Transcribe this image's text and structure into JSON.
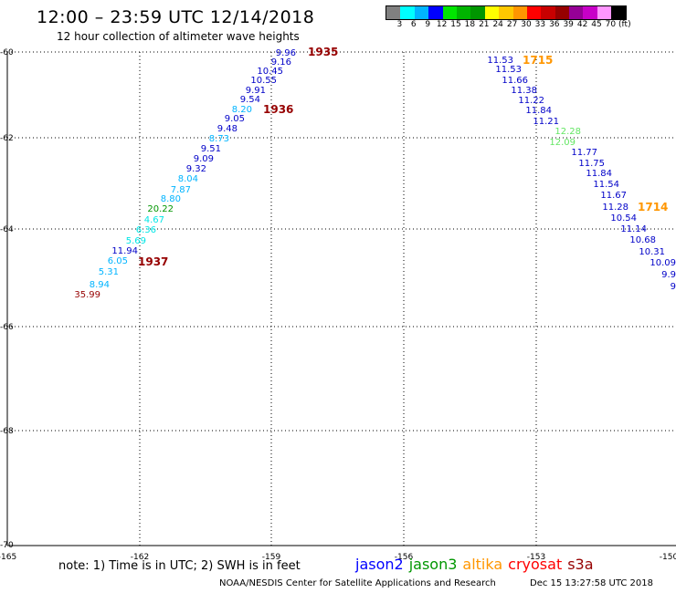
{
  "header": {
    "title": "12:00 – 23:59 UTC 12/14/2018",
    "subtitle": "12 hour collection of altimeter wave heights"
  },
  "colorbar": {
    "colors": [
      "#808080",
      "#00ffff",
      "#00b4ff",
      "#0000ff",
      "#00e600",
      "#00b400",
      "#009600",
      "#ffff00",
      "#ffc800",
      "#ff9600",
      "#ff0000",
      "#c80000",
      "#960000",
      "#960096",
      "#c800c8",
      "#ff96ff",
      "#000000"
    ],
    "ticks": [
      "3",
      "6",
      "9",
      "12",
      "15",
      "18",
      "21",
      "24",
      "27",
      "30",
      "33",
      "36",
      "39",
      "42",
      "45",
      "70",
      "(ft)"
    ]
  },
  "axes": {
    "lon_ticks": [
      "-165",
      "-162",
      "-159",
      "-156",
      "-153",
      "-150"
    ],
    "lat_ticks": [
      "-60",
      "-62",
      "-64",
      "-66",
      "-68",
      "-70"
    ]
  },
  "tracks": [
    {
      "points": [
        {
          "v": "9.96",
          "c": "#0000c8"
        },
        {
          "v": "9.16",
          "c": "#0000c8"
        },
        {
          "v": "10.45",
          "c": "#0000c8"
        },
        {
          "v": "10.55",
          "c": "#0000c8"
        },
        {
          "v": "9.91",
          "c": "#0000c8"
        },
        {
          "v": "9.54",
          "c": "#0000c8"
        },
        {
          "v": "8.20",
          "c": "#00b4ff"
        },
        {
          "v": "9.05",
          "c": "#0000c8"
        },
        {
          "v": "9.48",
          "c": "#0000c8"
        },
        {
          "v": "8.73",
          "c": "#00b4ff"
        },
        {
          "v": "9.51",
          "c": "#0000c8"
        },
        {
          "v": "9.09",
          "c": "#0000c8"
        },
        {
          "v": "9.32",
          "c": "#0000c8"
        },
        {
          "v": "8.04",
          "c": "#00b4ff"
        },
        {
          "v": "7.87",
          "c": "#00b4ff"
        },
        {
          "v": "8.80",
          "c": "#00b4ff"
        },
        {
          "v": "20.22",
          "c": "#009600"
        },
        {
          "v": "4.67",
          "c": "#00e6e6"
        },
        {
          "v": "6.36",
          "c": "#00e6e6"
        },
        {
          "v": "5.69",
          "c": "#00e6e6"
        },
        {
          "v": "11.94",
          "c": "#0000c8"
        },
        {
          "v": "6.05",
          "c": "#00b4ff"
        },
        {
          "v": "5.31",
          "c": "#00b4ff"
        },
        {
          "v": "8.94",
          "c": "#00b4ff"
        },
        {
          "v": "35.99",
          "c": "#960000"
        }
      ]
    },
    {
      "points": [
        {
          "v": "11.53",
          "c": "#0000c8"
        },
        {
          "v": "11.53",
          "c": "#0000c8"
        },
        {
          "v": "11.66",
          "c": "#0000c8"
        },
        {
          "v": "11.38",
          "c": "#0000c8"
        },
        {
          "v": "11.22",
          "c": "#0000c8"
        },
        {
          "v": "11.84",
          "c": "#0000c8"
        },
        {
          "v": "11.21",
          "c": "#0000c8"
        },
        {
          "v": "12.28",
          "c": "#64e664"
        },
        {
          "v": "12.09",
          "c": "#64e664"
        },
        {
          "v": "11.77",
          "c": "#0000c8"
        },
        {
          "v": "11.75",
          "c": "#0000c8"
        },
        {
          "v": "11.84",
          "c": "#0000c8"
        },
        {
          "v": "11.54",
          "c": "#0000c8"
        },
        {
          "v": "11.67",
          "c": "#0000c8"
        },
        {
          "v": "11.28",
          "c": "#0000c8"
        },
        {
          "v": "10.54",
          "c": "#0000c8"
        },
        {
          "v": "11.14",
          "c": "#0000c8"
        },
        {
          "v": "10.68",
          "c": "#0000c8"
        },
        {
          "v": "10.31",
          "c": "#0000c8"
        },
        {
          "v": "10.09",
          "c": "#0000c8"
        },
        {
          "v": "9.9",
          "c": "#0000c8"
        },
        {
          "v": "9",
          "c": "#0000c8"
        }
      ]
    }
  ],
  "time_labels": [
    {
      "text": "1935",
      "color": "#960000"
    },
    {
      "text": "1936",
      "color": "#960000"
    },
    {
      "text": "1937",
      "color": "#960000"
    },
    {
      "text": "1715",
      "color": "#ff9600"
    },
    {
      "text": "1714",
      "color": "#ff9600"
    }
  ],
  "footer": {
    "note": "note: 1) Time is in UTC; 2) SWH is in feet",
    "legend": [
      {
        "name": "jason2",
        "color": "#0000ff"
      },
      {
        "name": "jason3",
        "color": "#009600"
      },
      {
        "name": "altika",
        "color": "#ff9600"
      },
      {
        "name": "cryosat",
        "color": "#ff0000"
      },
      {
        "name": "s3a",
        "color": "#960000"
      }
    ],
    "credit": "NOAA/NESDIS Center for Satellite Applications and Research",
    "timestamp": "Dec 15 13:27:58 UTC 2018"
  }
}
